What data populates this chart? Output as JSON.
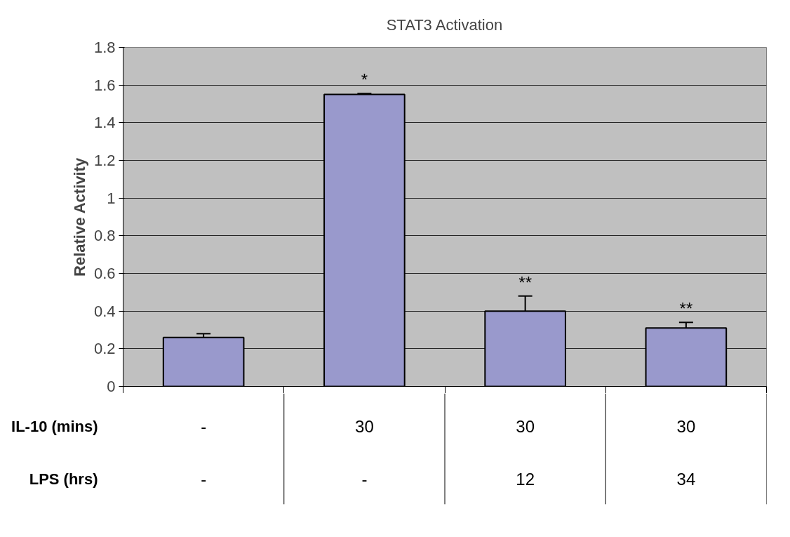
{
  "chart_data": {
    "type": "bar",
    "title": "STAT3 Activation",
    "ylabel": "Relative Activity",
    "categories": [
      "-",
      "30",
      "30",
      "30"
    ],
    "values": [
      0.26,
      1.55,
      0.4,
      0.31
    ],
    "errors": [
      0.02,
      0.005,
      0.08,
      0.03
    ],
    "color": "#9999cc",
    "ylim": [
      0,
      1.8
    ],
    "yticks": [
      0,
      0.2,
      0.4,
      0.6,
      0.8,
      1,
      1.2,
      1.4,
      1.6,
      1.8
    ],
    "grid": "y",
    "annotations": [
      "IL-10 (mins)",
      "LPS (hrs)",
      "-",
      "-",
      "12",
      "34",
      "*",
      "**",
      "**"
    ]
  }
}
